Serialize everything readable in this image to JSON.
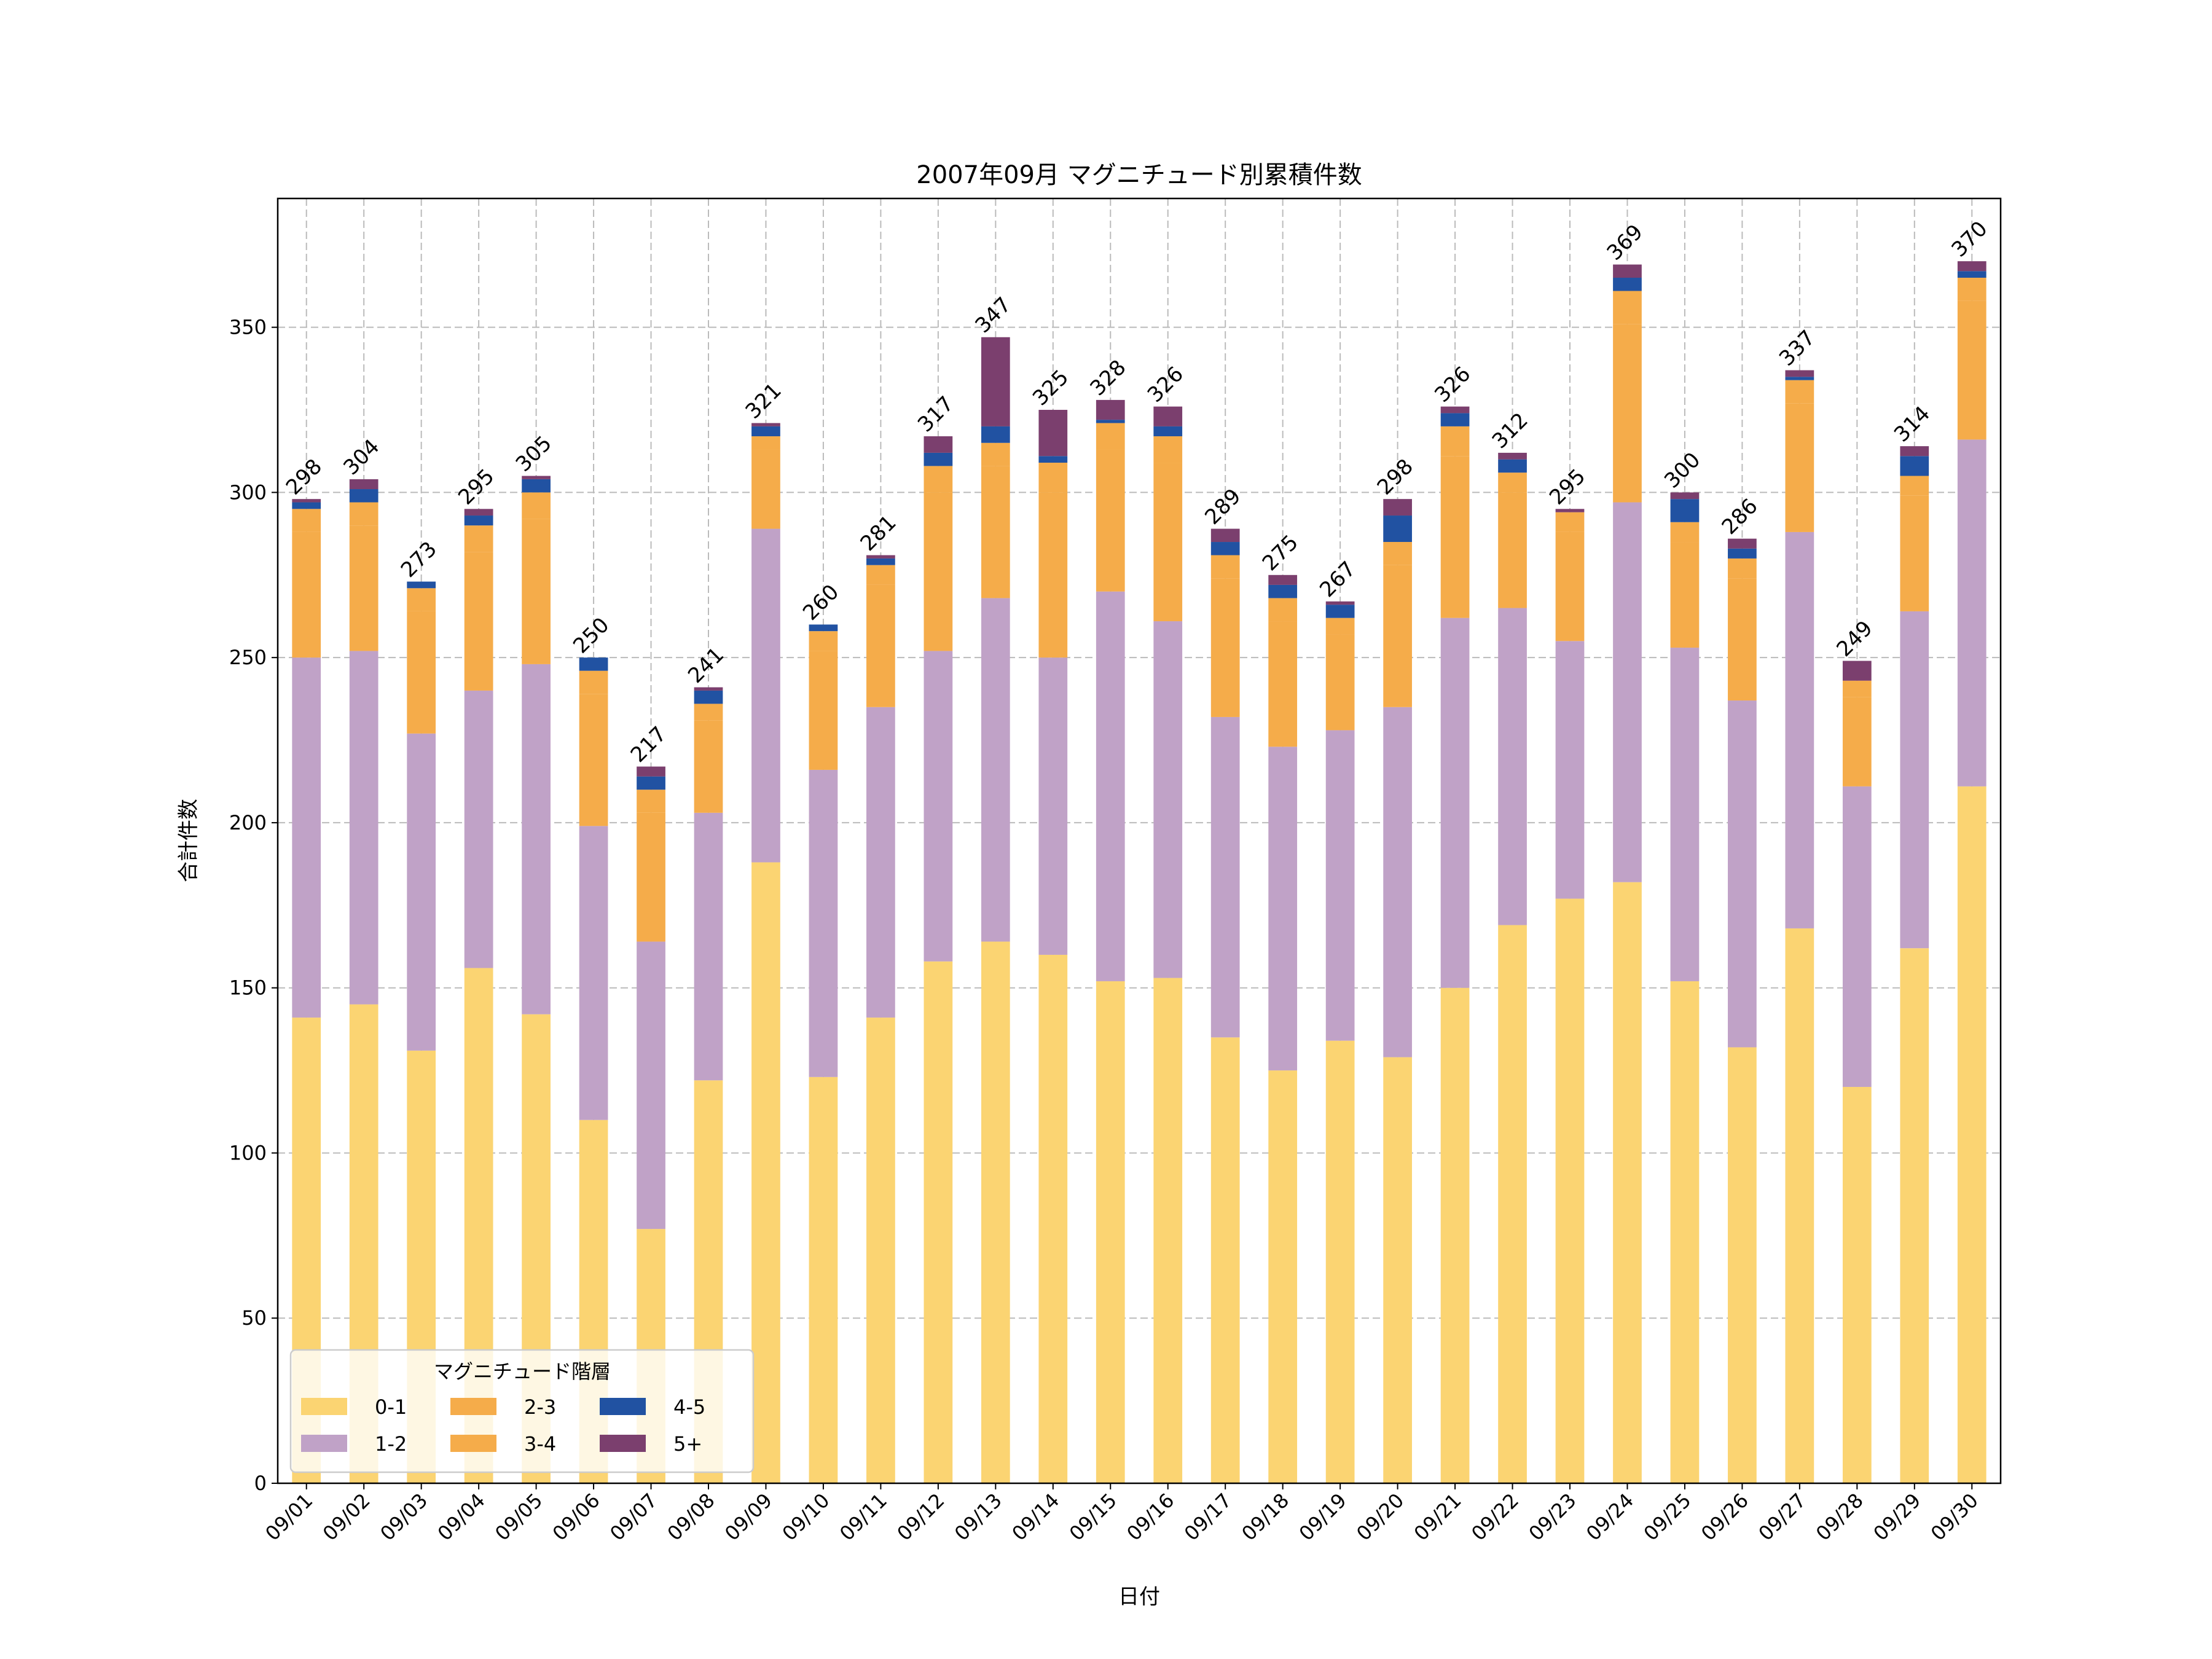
{
  "chart_data": {
    "type": "bar",
    "stacked": true,
    "title": "2007年09月 マグニチュード別累積件数",
    "xlabel": "日付",
    "ylabel": "合計件数",
    "ylim": [
      0,
      389
    ],
    "yticks": [
      0,
      50,
      100,
      150,
      200,
      250,
      300,
      350
    ],
    "grid": true,
    "legend": {
      "title": "マグニチュード階層",
      "placement": "lower-left"
    },
    "categories": [
      "09/01",
      "09/02",
      "09/03",
      "09/04",
      "09/05",
      "09/06",
      "09/07",
      "09/08",
      "09/09",
      "09/10",
      "09/11",
      "09/12",
      "09/13",
      "09/14",
      "09/15",
      "09/16",
      "09/17",
      "09/18",
      "09/19",
      "09/20",
      "09/21",
      "09/22",
      "09/23",
      "09/24",
      "09/25",
      "09/26",
      "09/27",
      "09/28",
      "09/29",
      "09/30"
    ],
    "series": [
      {
        "name": "0-1",
        "color": "#fbd472",
        "values": [
          141,
          145,
          131,
          156,
          142,
          110,
          77,
          122,
          188,
          123,
          141,
          158,
          164,
          160,
          152,
          153,
          135,
          125,
          134,
          129,
          150,
          169,
          177,
          182,
          152,
          132,
          168,
          120,
          162,
          211
        ]
      },
      {
        "name": "1-2",
        "color": "#c0a2c7",
        "values": [
          109,
          107,
          96,
          84,
          106,
          89,
          87,
          81,
          101,
          93,
          94,
          94,
          104,
          90,
          118,
          108,
          97,
          98,
          94,
          106,
          112,
          96,
          78,
          115,
          101,
          105,
          120,
          91,
          102,
          105
        ]
      },
      {
        "name": "2-3",
        "color": "#f5ac4a",
        "values": [
          38,
          38,
          37,
          42,
          44,
          40,
          39,
          28,
          24,
          36,
          37,
          48,
          40,
          50,
          43,
          48,
          42,
          38,
          29,
          43,
          49,
          35,
          33,
          54,
          32,
          37,
          39,
          27,
          35,
          42
        ]
      },
      {
        "name": "3-4",
        "color": "#f5ac4a",
        "values": [
          7,
          7,
          7,
          8,
          8,
          7,
          7,
          5,
          4,
          6,
          6,
          8,
          7,
          9,
          8,
          8,
          7,
          7,
          5,
          7,
          9,
          6,
          6,
          10,
          6,
          6,
          7,
          5,
          6,
          7
        ]
      },
      {
        "name": "4-5",
        "color": "#2152a2",
        "values": [
          2,
          4,
          2,
          3,
          4,
          4,
          4,
          4,
          3,
          2,
          2,
          4,
          5,
          2,
          1,
          3,
          4,
          4,
          4,
          8,
          4,
          4,
          0,
          4,
          7,
          3,
          1,
          0,
          6,
          2
        ]
      },
      {
        "name": "5+",
        "color": "#7b3f6e",
        "values": [
          1,
          3,
          0,
          2,
          1,
          0,
          3,
          1,
          1,
          0,
          1,
          5,
          27,
          14,
          6,
          6,
          4,
          3,
          1,
          5,
          2,
          2,
          1,
          4,
          2,
          3,
          2,
          6,
          3,
          3
        ]
      }
    ],
    "totals": [
      298,
      304,
      273,
      295,
      305,
      250,
      217,
      241,
      321,
      260,
      281,
      317,
      347,
      325,
      328,
      326,
      289,
      275,
      267,
      298,
      326,
      312,
      295,
      369,
      300,
      286,
      337,
      249,
      314,
      370
    ]
  }
}
